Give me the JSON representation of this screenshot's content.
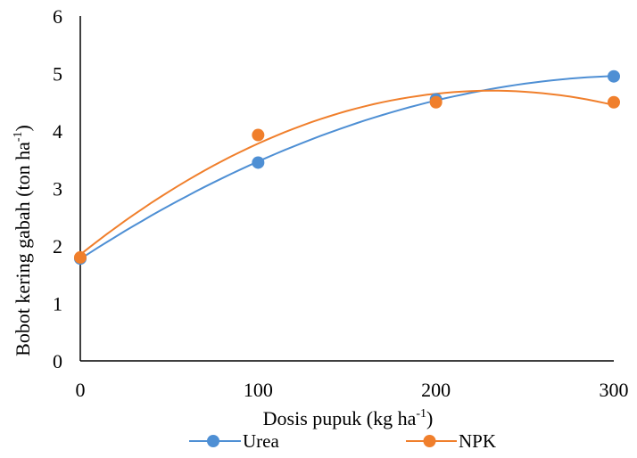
{
  "chart_data": {
    "type": "scatter",
    "title": "",
    "xlabel": "Dosis pupuk (kg ha",
    "xlabel_sup": "-1",
    "xlabel_tail": ")",
    "ylabel": "Bobot kering gabah (ton ha",
    "ylabel_sup": "-1",
    "ylabel_tail": ")",
    "xlim": [
      0,
      300
    ],
    "ylim": [
      0,
      6
    ],
    "x_ticks": [
      "0",
      "100",
      "200",
      "300"
    ],
    "y_ticks": [
      "0",
      "1",
      "2",
      "3",
      "4",
      "5",
      "6"
    ],
    "x": [
      0,
      100,
      200,
      300
    ],
    "series": [
      {
        "name": "Urea",
        "values": [
          1.78,
          3.45,
          4.55,
          4.95
        ],
        "color": "#4e8fd4",
        "trend": "polynomial-2"
      },
      {
        "name": "NPK",
        "values": [
          1.8,
          3.93,
          4.5,
          4.5
        ],
        "color": "#f07f2c",
        "trend": "polynomial-2"
      }
    ],
    "grid": false,
    "legend": "bottom"
  }
}
